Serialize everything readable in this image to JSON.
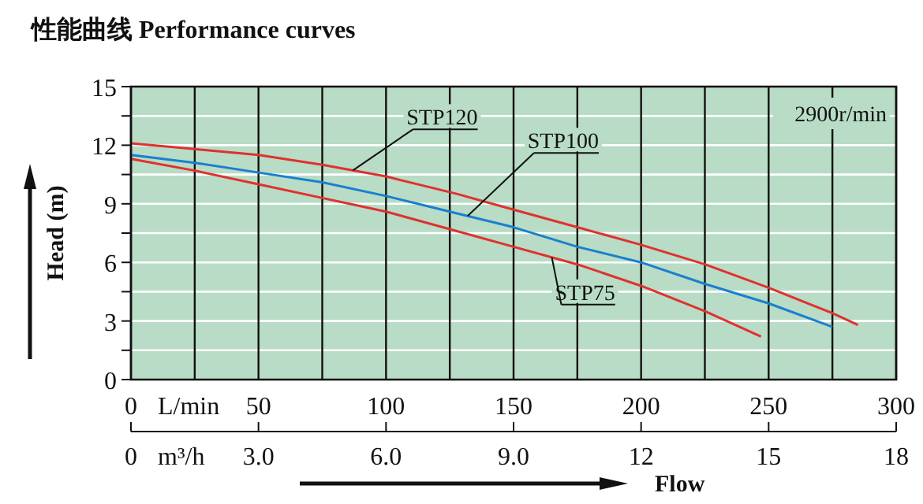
{
  "chart_data": {
    "type": "line",
    "title": "性能曲线 Performance curves",
    "xlabel": "Flow",
    "ylabel": "Head (m)",
    "annotations": [
      "L/min",
      "m³/h",
      "2900r/min"
    ],
    "xlim": [
      0,
      300
    ],
    "ylim": [
      0,
      15
    ],
    "xticks": [
      0,
      {
        "value": 25,
        "label": null
      },
      50,
      {
        "value": 75,
        "label": null
      },
      100,
      {
        "value": 125,
        "label": null
      },
      150,
      {
        "value": 175,
        "label": null
      },
      200,
      {
        "value": 225,
        "label": null
      },
      250,
      {
        "value": 275,
        "label": null
      },
      300
    ],
    "yticks": [
      0,
      {
        "value": 1.5,
        "label": null
      },
      3,
      {
        "value": 4.5,
        "label": null
      },
      6,
      {
        "value": 7.5,
        "label": null
      },
      9,
      {
        "value": 10.5,
        "label": null
      },
      12,
      {
        "value": 13.5,
        "label": null
      },
      15
    ],
    "x2lim": [
      0,
      18
    ],
    "x2ticks": [
      0,
      {
        "value": 3,
        "label": "3.0"
      },
      {
        "value": 6,
        "label": "6.0"
      },
      {
        "value": 9,
        "label": "9.0"
      },
      12,
      15,
      18
    ],
    "grid": true,
    "line_style": "solid",
    "marker": "none",
    "series": [
      {
        "name": "STP120",
        "color": "#e0312f",
        "x": [
          0,
          25,
          50,
          75,
          100,
          128,
          150,
          175,
          200,
          225,
          250,
          275,
          285
        ],
        "values": [
          12.1,
          11.8,
          11.5,
          11.0,
          10.4,
          9.5,
          8.7,
          7.8,
          6.9,
          5.9,
          4.7,
          3.4,
          2.8
        ]
      },
      {
        "name": "STP100",
        "color": "#1a7fd0",
        "x": [
          0,
          25,
          50,
          75,
          100,
          125,
          150,
          175,
          200,
          225,
          250,
          275
        ],
        "values": [
          11.5,
          11.1,
          10.6,
          10.1,
          9.4,
          8.6,
          7.8,
          6.8,
          6.0,
          4.9,
          3.9,
          2.7
        ]
      },
      {
        "name": "STP75",
        "color": "#e0312f",
        "x": [
          0,
          25,
          50,
          75,
          100,
          125,
          150,
          175,
          200,
          225,
          247
        ],
        "values": [
          11.3,
          10.7,
          10.0,
          9.3,
          8.6,
          7.7,
          6.8,
          5.9,
          4.8,
          3.5,
          2.2
        ]
      }
    ]
  }
}
